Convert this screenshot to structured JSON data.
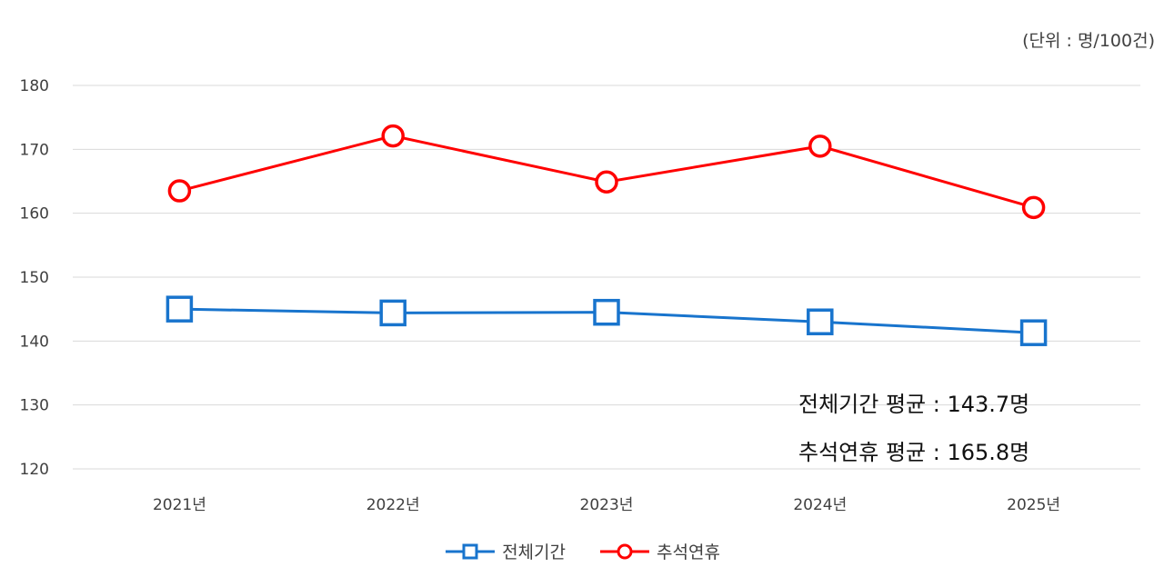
{
  "unit_label": "(단위 : 명/100건)",
  "annotations": [
    "전체기간 평균 : 143.7명",
    "추석연휴 평균 : 165.8명"
  ],
  "colors": {
    "series_total": "#1874cd",
    "series_chuseok": "#ff0000",
    "grid": "#d9d9d9",
    "tick_text": "#404040"
  },
  "chart_data": {
    "type": "line",
    "categories": [
      "2021년",
      "2022년",
      "2023년",
      "2024년",
      "2025년"
    ],
    "series": [
      {
        "name": "전체기간",
        "values": [
          145.0,
          144.4,
          144.5,
          143.0,
          141.3
        ],
        "marker": "square"
      },
      {
        "name": "추석연휴",
        "values": [
          163.5,
          172.1,
          164.9,
          170.5,
          160.9
        ],
        "marker": "circle"
      }
    ],
    "yticks": [
      120,
      130,
      140,
      150,
      160,
      170,
      180
    ],
    "ylim": [
      120,
      180
    ],
    "grid": true,
    "legend_position": "bottom"
  }
}
